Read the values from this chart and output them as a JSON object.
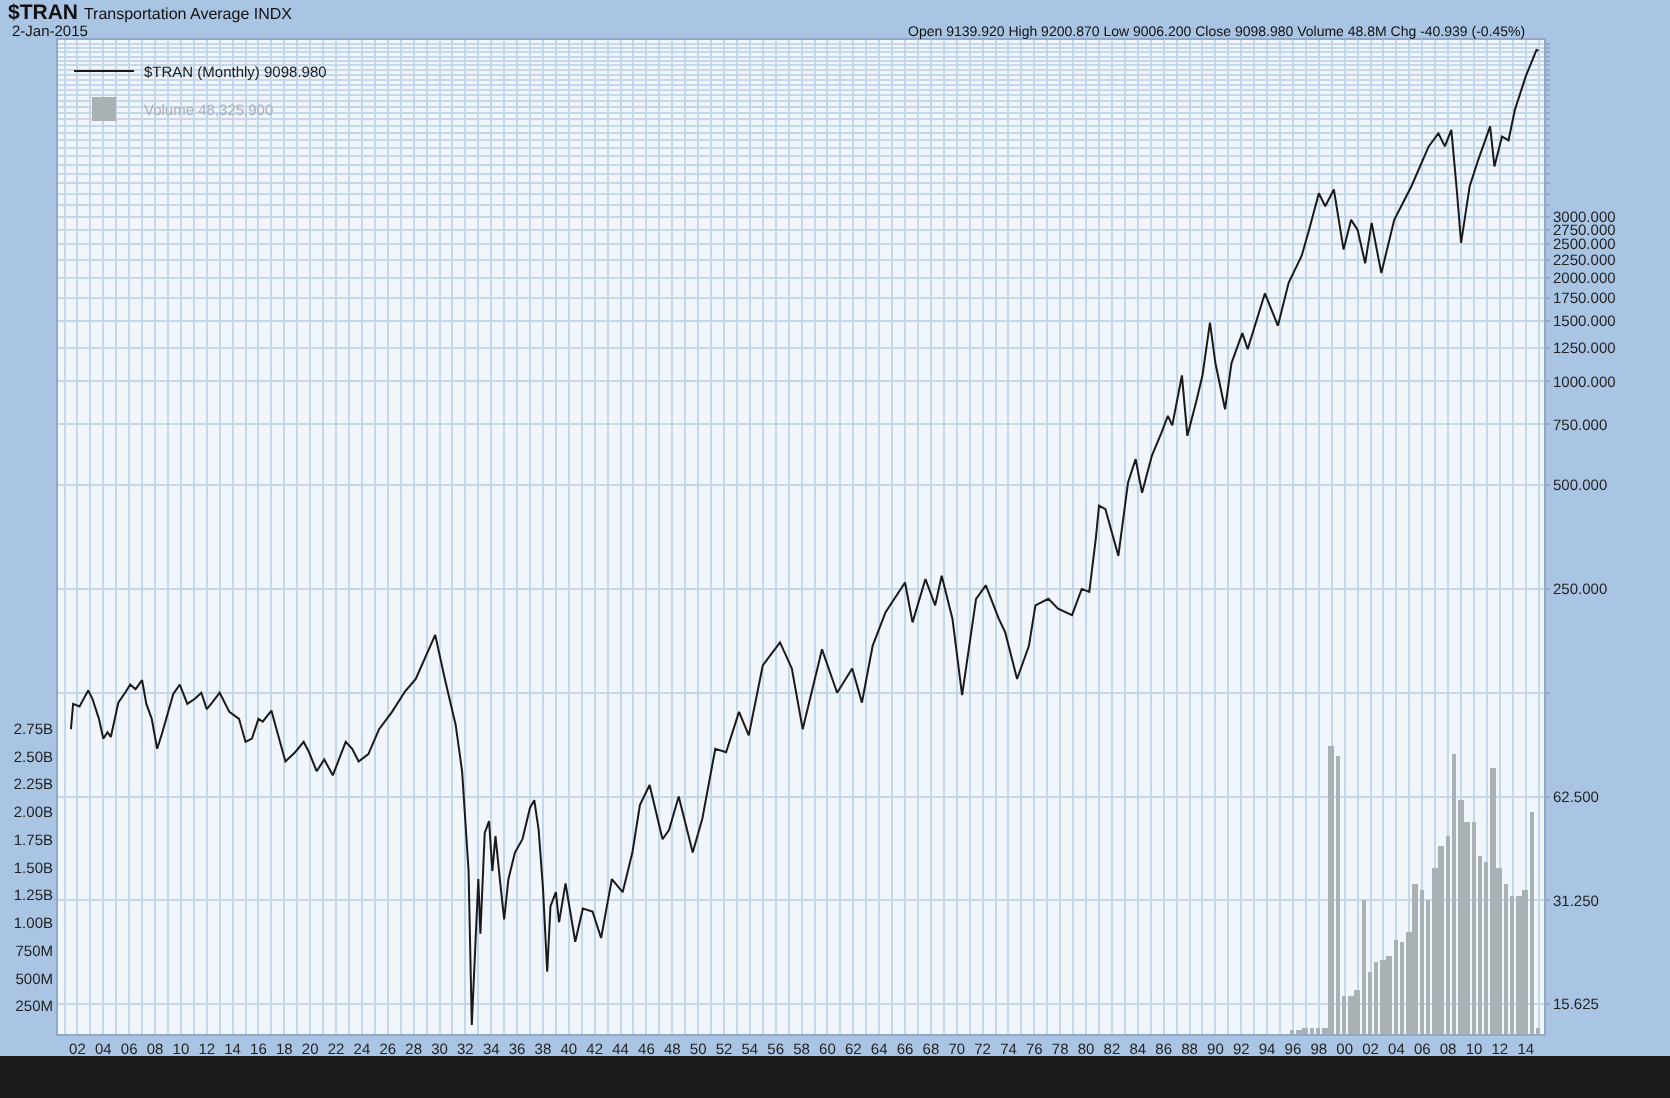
{
  "chart_data": {
    "type": "line",
    "title": "$TRAN Transportation Average INDX",
    "subtitle": "2-Jan-2015",
    "annotations": [
      "Open 9139.920 High 9200.870 Low 9006.200 Close 9098.980 Volume 48.8M Chg -40.939 (-0.45%)"
    ],
    "series": [
      {
        "name": "$TRAN (Monthly) 9098.980",
        "color": "#1a1a1a",
        "x": [
          "1901-07",
          "1901-09",
          "1902-03",
          "1902-11",
          "1903-03",
          "1903-09",
          "1904-01",
          "1904-05",
          "1904-08",
          "1905-03",
          "1905-10",
          "1906-02",
          "1906-07",
          "1907-01",
          "1907-05",
          "1907-10",
          "1908-03",
          "1908-07",
          "1909-06",
          "1909-12",
          "1910-07",
          "1911-02",
          "1911-08",
          "1912-01",
          "1912-06",
          "1913-01",
          "1913-10",
          "1914-07",
          "1915-01",
          "1915-07",
          "1916-01",
          "1916-05",
          "1917-01",
          "1917-05",
          "1918-02",
          "1918-11",
          "1919-07",
          "1919-12",
          "1920-07",
          "1921-02",
          "1921-10",
          "1922-10",
          "1923-04",
          "1923-10",
          "1924-07",
          "1925-05",
          "1926-05",
          "1927-05",
          "1928-03",
          "1929-09",
          "1930-06",
          "1931-04",
          "1931-10",
          "1932-04",
          "1932-07",
          "1933-01",
          "1933-03",
          "1933-07",
          "1933-11",
          "1934-02",
          "1934-05",
          "1934-09",
          "1935-01",
          "1935-05",
          "1935-11",
          "1936-06",
          "1937-01",
          "1937-05",
          "1937-09",
          "1938-01",
          "1938-05",
          "1938-08",
          "1939-01",
          "1939-04",
          "1939-10",
          "1940-07",
          "1941-02",
          "1941-11",
          "1942-07",
          "1943-05",
          "1944-03",
          "1944-12",
          "1945-07",
          "1946-04",
          "1947-04",
          "1947-10",
          "1948-07",
          "1949-08",
          "1950-05",
          "1951-05",
          "1952-03",
          "1953-03",
          "1953-12",
          "1955-01",
          "1956-05",
          "1957-04",
          "1958-02",
          "1959-08",
          "1960-10",
          "1961-12",
          "1962-09",
          "1963-07",
          "1964-07",
          "1966-01",
          "1966-08",
          "1967-08",
          "1968-05",
          "1968-11",
          "1969-09",
          "1970-06",
          "1971-07",
          "1972-04",
          "1973-04",
          "1973-10",
          "1974-09",
          "1975-08",
          "1976-02",
          "1977-02",
          "1977-11",
          "1978-12",
          "1979-09",
          "1980-04",
          "1980-10",
          "1981-01",
          "1981-07",
          "1982-07",
          "1983-04",
          "1983-11",
          "1984-05",
          "1985-02",
          "1985-11",
          "1986-05",
          "1986-09",
          "1987-06",
          "1987-11",
          "1988-07",
          "1989-01",
          "1989-08",
          "1990-01",
          "1990-10",
          "1991-04",
          "1992-02",
          "1992-07",
          "1993-11",
          "1994-11",
          "1995-09",
          "1996-09",
          "1997-04",
          "1998-01",
          "1998-07",
          "1999-03",
          "1999-12",
          "2000-07",
          "2001-01",
          "2001-08",
          "2002-02",
          "2002-11",
          "2003-11",
          "2005-03",
          "2006-07",
          "2007-04",
          "2007-10",
          "2008-04",
          "2008-09",
          "2009-01",
          "2009-09",
          "2010-05",
          "2011-04",
          "2011-08",
          "2012-03",
          "2012-09",
          "2013-03",
          "2014-01",
          "2014-11",
          "2015-01"
        ],
        "values": [
          98,
          116,
          114,
          127,
          120,
          105,
          92,
          96,
          93,
          117,
          126,
          132,
          128,
          136,
          116,
          105,
          86,
          94,
          124,
          132,
          116,
          120,
          125,
          112,
          117,
          125,
          110,
          105,
          90,
          92,
          105,
          103,
          111,
          100,
          79,
          84,
          90,
          84,
          74,
          80,
          72,
          90,
          86,
          79,
          83,
          98,
          110,
          126,
          137,
          184,
          137,
          101,
          74,
          38,
          13.6,
          36,
          25,
          49,
          53,
          38,
          48,
          36,
          27.5,
          36,
          43,
          47,
          58,
          61,
          50,
          34,
          19.4,
          30,
          33,
          27,
          35,
          23.7,
          29.6,
          29,
          24.3,
          36,
          33,
          43,
          59,
          67.5,
          47,
          50,
          62.5,
          43,
          54,
          86,
          84,
          110,
          94,
          150,
          175,
          147,
          98,
          167,
          125,
          147,
          117,
          171,
          214,
          261,
          200,
          267,
          224,
          273,
          205,
          123,
          234,
          256,
          205,
          187,
          137,
          171,
          224,
          234,
          219,
          210,
          250,
          245,
          349,
          436,
          426,
          312,
          509,
          595,
          475,
          608,
          710,
          794,
          745,
          1040,
          695,
          867,
          1040,
          1480,
          1130,
          830,
          1130,
          1380,
          1240,
          1800,
          1450,
          1930,
          2310,
          2750,
          3510,
          3220,
          3600,
          2410,
          2940,
          2750,
          2200,
          2880,
          2060,
          2940,
          3680,
          4800,
          5240,
          4800,
          5360,
          3600,
          2520,
          3680,
          4390,
          5490,
          4200,
          5130,
          5000,
          6130,
          7660,
          9140,
          9099
        ]
      },
      {
        "name": "Volume 48,325,900",
        "type": "bar",
        "axis": "y2",
        "color": "#a9b1b4",
        "x": [
          "1996-01",
          "1996-07",
          "1997-01",
          "1997-07",
          "1998-01",
          "1998-07",
          "1999-01",
          "1999-07",
          "2000-01",
          "2000-07",
          "2001-01",
          "2001-07",
          "2002-01",
          "2002-07",
          "2003-01",
          "2003-07",
          "2004-01",
          "2004-07",
          "2005-01",
          "2005-07",
          "2006-01",
          "2006-07",
          "2007-01",
          "2007-07",
          "2008-01",
          "2008-07",
          "2009-01",
          "2009-07",
          "2010-01",
          "2010-07",
          "2011-01",
          "2011-07",
          "2012-01",
          "2012-07",
          "2013-01",
          "2013-07",
          "2014-01",
          "2014-07",
          "2015-01"
        ],
        "values": [
          40000000.0,
          40000000.0,
          50000000.0,
          50000000.0,
          60000000.0,
          60000000.0,
          2600000000.0,
          2500000000.0,
          340000000.0,
          350000000.0,
          400000000.0,
          1200000000.0,
          550000000.0,
          650000000.0,
          660000000.0,
          700000000.0,
          850000000.0,
          820000000.0,
          920000000.0,
          1350000000.0,
          1300000000.0,
          1200000000.0,
          1500000000.0,
          1700000000.0,
          1780000000.0,
          2530000000.0,
          2100000000.0,
          1900000000.0,
          1900000000.0,
          1600000000.0,
          1550000000.0,
          2400000000.0,
          1500000000.0,
          1350000000.0,
          1250000000.0,
          1250000000.0,
          1300000000.0,
          2000000000.0,
          48325900
        ]
      }
    ],
    "xlim": [
      "1900-07",
      "2015-06"
    ],
    "xticks": [
      {
        "value": "1901",
        "label": null
      },
      {
        "value": "1902",
        "label": "02"
      },
      {
        "value": "1903",
        "label": null
      },
      {
        "value": "1904",
        "label": "04"
      },
      {
        "value": "1905",
        "label": null
      },
      {
        "value": "1906",
        "label": "06"
      },
      {
        "value": "1907",
        "label": null
      },
      {
        "value": "1908",
        "label": "08"
      },
      {
        "value": "1909",
        "label": null
      },
      {
        "value": "1910",
        "label": "10"
      },
      {
        "value": "1911",
        "label": null
      },
      {
        "value": "1912",
        "label": "12"
      },
      {
        "value": "1913",
        "label": null
      },
      {
        "value": "1914",
        "label": "14"
      },
      {
        "value": "1915",
        "label": null
      },
      {
        "value": "1916",
        "label": "16"
      },
      {
        "value": "1917",
        "label": null
      },
      {
        "value": "1918",
        "label": "18"
      },
      {
        "value": "1919",
        "label": null
      },
      {
        "value": "1920",
        "label": "20"
      },
      {
        "value": "1921",
        "label": null
      },
      {
        "value": "1922",
        "label": "22"
      },
      {
        "value": "1923",
        "label": null
      },
      {
        "value": "1924",
        "label": "24"
      },
      {
        "value": "1925",
        "label": null
      },
      {
        "value": "1926",
        "label": "26"
      },
      {
        "value": "1927",
        "label": null
      },
      {
        "value": "1928",
        "label": "28"
      },
      {
        "value": "1929",
        "label": null
      },
      {
        "value": "1930",
        "label": "30"
      },
      {
        "value": "1931",
        "label": null
      },
      {
        "value": "1932",
        "label": "32"
      },
      {
        "value": "1933",
        "label": null
      },
      {
        "value": "1934",
        "label": "34"
      },
      {
        "value": "1935",
        "label": null
      },
      {
        "value": "1936",
        "label": "36"
      },
      {
        "value": "1937",
        "label": null
      },
      {
        "value": "1938",
        "label": "38"
      },
      {
        "value": "1939",
        "label": null
      },
      {
        "value": "1940",
        "label": "40"
      },
      {
        "value": "1941",
        "label": null
      },
      {
        "value": "1942",
        "label": "42"
      },
      {
        "value": "1943",
        "label": null
      },
      {
        "value": "1944",
        "label": "44"
      },
      {
        "value": "1945",
        "label": null
      },
      {
        "value": "1946",
        "label": "46"
      },
      {
        "value": "1947",
        "label": null
      },
      {
        "value": "1948",
        "label": "48"
      },
      {
        "value": "1949",
        "label": null
      },
      {
        "value": "1950",
        "label": "50"
      },
      {
        "value": "1951",
        "label": null
      },
      {
        "value": "1952",
        "label": "52"
      },
      {
        "value": "1953",
        "label": null
      },
      {
        "value": "1954",
        "label": "54"
      },
      {
        "value": "1955",
        "label": null
      },
      {
        "value": "1956",
        "label": "56"
      },
      {
        "value": "1957",
        "label": null
      },
      {
        "value": "1958",
        "label": "58"
      },
      {
        "value": "1959",
        "label": null
      },
      {
        "value": "1960",
        "label": "60"
      },
      {
        "value": "1961",
        "label": null
      },
      {
        "value": "1962",
        "label": "62"
      },
      {
        "value": "1963",
        "label": null
      },
      {
        "value": "1964",
        "label": "64"
      },
      {
        "value": "1965",
        "label": null
      },
      {
        "value": "1966",
        "label": "66"
      },
      {
        "value": "1967",
        "label": null
      },
      {
        "value": "1968",
        "label": "68"
      },
      {
        "value": "1969",
        "label": null
      },
      {
        "value": "1970",
        "label": "70"
      },
      {
        "value": "1971",
        "label": null
      },
      {
        "value": "1972",
        "label": "72"
      },
      {
        "value": "1973",
        "label": null
      },
      {
        "value": "1974",
        "label": "74"
      },
      {
        "value": "1975",
        "label": null
      },
      {
        "value": "1976",
        "label": "76"
      },
      {
        "value": "1977",
        "label": null
      },
      {
        "value": "1978",
        "label": "78"
      },
      {
        "value": "1979",
        "label": null
      },
      {
        "value": "1980",
        "label": "80"
      },
      {
        "value": "1981",
        "label": null
      },
      {
        "value": "1982",
        "label": "82"
      },
      {
        "value": "1983",
        "label": null
      },
      {
        "value": "1984",
        "label": "84"
      },
      {
        "value": "1985",
        "label": null
      },
      {
        "value": "1986",
        "label": "86"
      },
      {
        "value": "1987",
        "label": null
      },
      {
        "value": "1988",
        "label": "88"
      },
      {
        "value": "1989",
        "label": null
      },
      {
        "value": "1990",
        "label": "90"
      },
      {
        "value": "1991",
        "label": null
      },
      {
        "value": "1992",
        "label": "92"
      },
      {
        "value": "1993",
        "label": null
      },
      {
        "value": "1994",
        "label": "94"
      },
      {
        "value": "1995",
        "label": null
      },
      {
        "value": "1996",
        "label": "96"
      },
      {
        "value": "1997",
        "label": null
      },
      {
        "value": "1998",
        "label": "98"
      },
      {
        "value": "1999",
        "label": null
      },
      {
        "value": "2000",
        "label": "00"
      },
      {
        "value": "2001",
        "label": null
      },
      {
        "value": "2002",
        "label": "02"
      },
      {
        "value": "2003",
        "label": null
      },
      {
        "value": "2004",
        "label": "04"
      },
      {
        "value": "2005",
        "label": null
      },
      {
        "value": "2006",
        "label": "06"
      },
      {
        "value": "2007",
        "label": null
      },
      {
        "value": "2008",
        "label": "08"
      },
      {
        "value": "2009",
        "label": null
      },
      {
        "value": "2010",
        "label": "10"
      },
      {
        "value": "2011",
        "label": null
      },
      {
        "value": "2012",
        "label": "12"
      },
      {
        "value": "2013",
        "label": null
      },
      {
        "value": "2014",
        "label": "14"
      },
      {
        "value": "2015",
        "label": null
      }
    ],
    "ylim": [
      12.8,
      9770
    ],
    "yticks": [
      15.625,
      {
        "value": 31.25,
        "label": "31.250"
      },
      {
        "value": 62.5,
        "label": "62.500"
      },
      {
        "value": 125,
        "label": null
      },
      {
        "value": 250,
        "label": "250.000"
      },
      {
        "value": 500,
        "label": "500.000"
      },
      {
        "value": 750,
        "label": "750.000"
      },
      {
        "value": 1000,
        "label": "1000.000"
      },
      {
        "value": 1250,
        "label": "1250.000"
      },
      {
        "value": 1500,
        "label": "1500.000"
      },
      {
        "value": 1750,
        "label": "1750.000"
      },
      {
        "value": 2000,
        "label": "2000.000"
      },
      {
        "value": 2250,
        "label": "2250.000"
      },
      {
        "value": 2500,
        "label": "2500.000"
      },
      {
        "value": 2750,
        "label": "2750.000"
      },
      {
        "value": 3000,
        "label": "3000.000"
      },
      {
        "value": 3250,
        "label": null
      },
      {
        "value": 3500,
        "label": null
      },
      {
        "value": 3750,
        "label": null
      },
      {
        "value": 4000,
        "label": null
      },
      {
        "value": 4250,
        "label": null
      },
      {
        "value": 4500,
        "label": null
      },
      {
        "value": 4750,
        "label": null
      },
      {
        "value": 5000,
        "label": null
      },
      {
        "value": 5250,
        "label": null
      },
      {
        "value": 5500,
        "label": null
      },
      {
        "value": 5750,
        "label": null
      },
      {
        "value": 6000,
        "label": null
      },
      {
        "value": 6250,
        "label": null
      },
      {
        "value": 6500,
        "label": null
      },
      {
        "value": 6750,
        "label": null
      },
      {
        "value": 7000,
        "label": null
      },
      {
        "value": 7250,
        "label": null
      },
      {
        "value": 7500,
        "label": null
      },
      {
        "value": 7750,
        "label": null
      },
      {
        "value": 8000,
        "label": null
      },
      {
        "value": 8250,
        "label": null
      },
      {
        "value": 8500,
        "label": null
      },
      {
        "value": 8750,
        "label": null
      },
      {
        "value": 9000,
        "label": null
      },
      {
        "value": 9250,
        "label": null
      },
      {
        "value": 9500,
        "label": null
      }
    ],
    "y2lim": [
      0,
      8950000000
    ],
    "y2ticks": [
      {
        "value": 250000000,
        "label": "250M"
      },
      {
        "value": 500000000,
        "label": "500M"
      },
      {
        "value": 750000000,
        "label": "750M"
      },
      {
        "value": 1000000000,
        "label": "1.00B"
      },
      {
        "value": 1250000000,
        "label": "1.25B"
      },
      {
        "value": 1500000000,
        "label": "1.50B"
      },
      {
        "value": 1750000000,
        "label": "1.75B"
      },
      {
        "value": 2000000000,
        "label": "2.00B"
      },
      {
        "value": 2250000000,
        "label": "2.25B"
      },
      {
        "value": 2500000000,
        "label": "2.50B"
      },
      {
        "value": 2750000000,
        "label": "2.75B"
      }
    ],
    "log": "y",
    "grid": true,
    "legend": "top left"
  }
}
